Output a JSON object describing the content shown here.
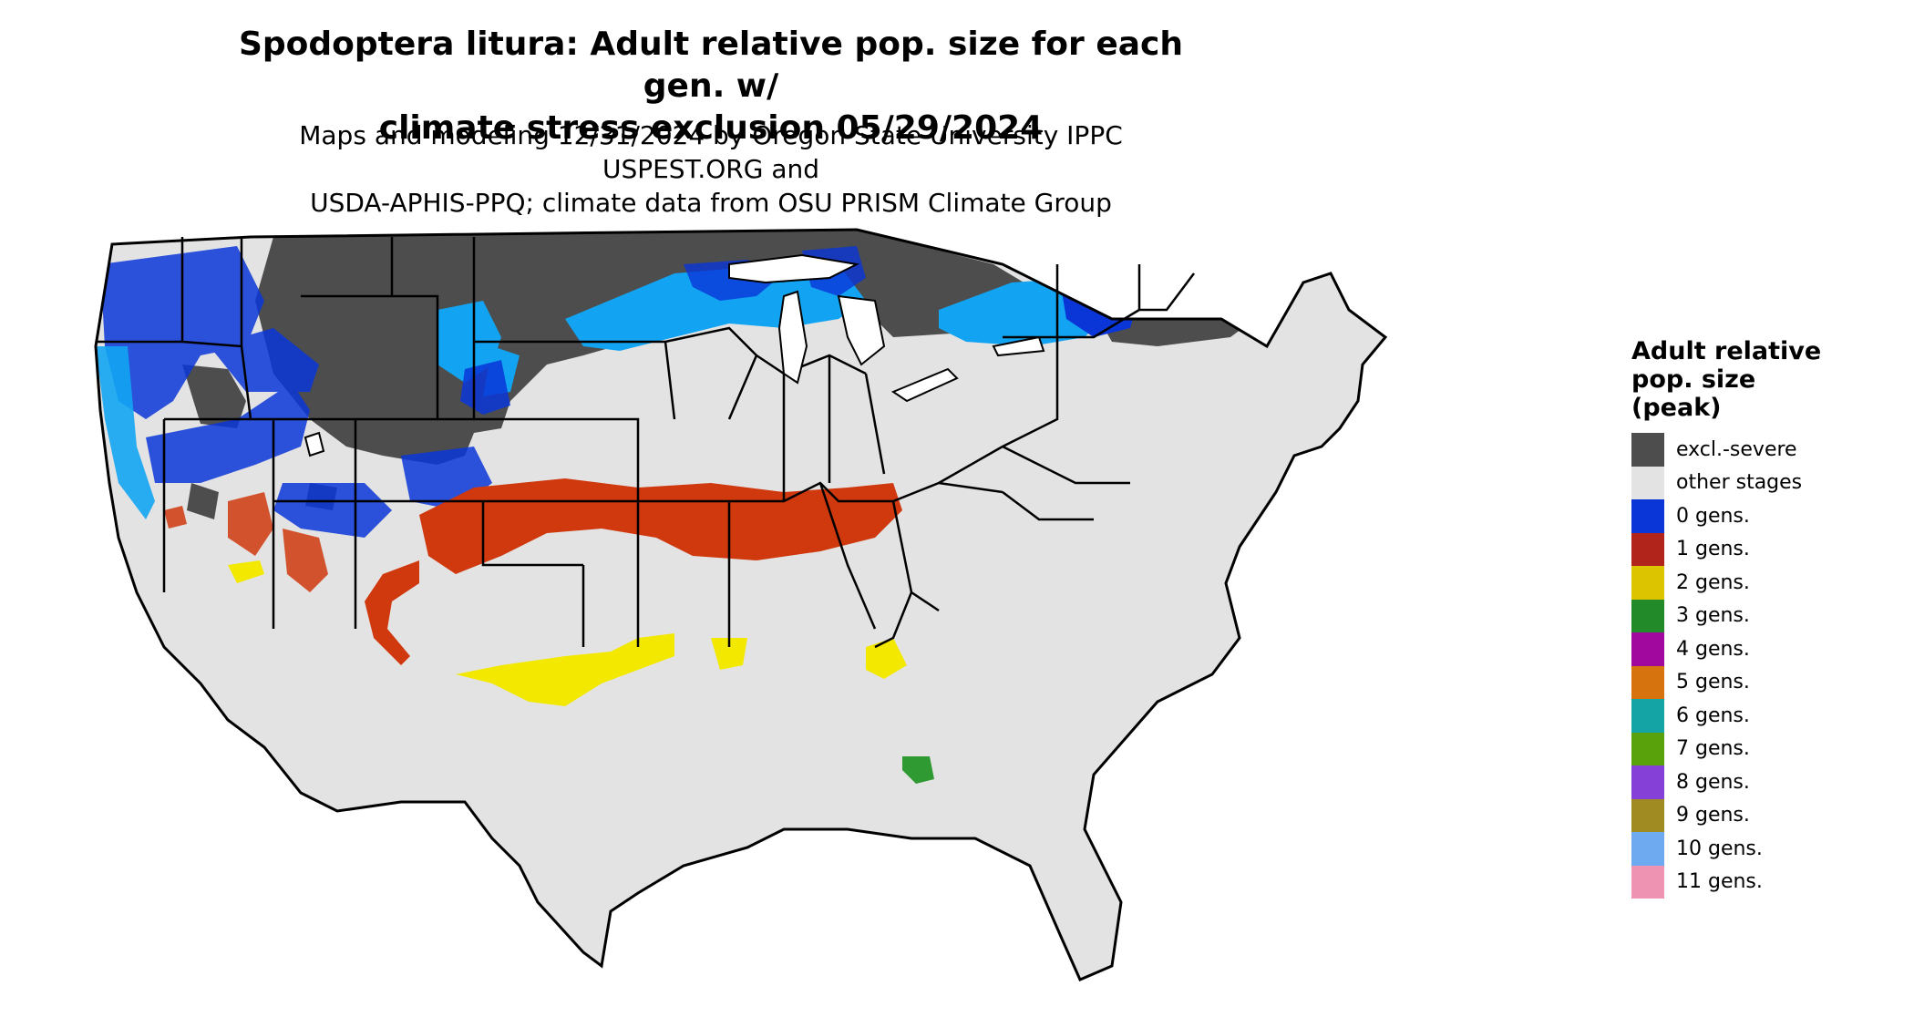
{
  "title": {
    "line1": "Spodoptera litura: Adult relative pop. size for each gen. w/",
    "line2": "climate stress exclusion 05/29/2024"
  },
  "subtitle": {
    "line1": "Maps and modeling 12/31/2024 by Oregon State University IPPC USPEST.ORG and",
    "line2": "USDA-APHIS-PPQ; climate data from OSU PRISM Climate Group"
  },
  "legend": {
    "title_lines": [
      "Adult relative",
      "pop. size",
      "(peak)"
    ],
    "items": [
      {
        "label": "excl.-severe",
        "color": "#4d4d4d"
      },
      {
        "label": "other stages",
        "color": "#e3e3e3"
      },
      {
        "label": "0 gens.",
        "color": "#0a36d8"
      },
      {
        "label": "1 gens.",
        "color": "#b0241c"
      },
      {
        "label": "2 gens.",
        "color": "#dcc400"
      },
      {
        "label": "3 gens.",
        "color": "#238a2a"
      },
      {
        "label": "4 gens.",
        "color": "#a0089e"
      },
      {
        "label": "5 gens.",
        "color": "#d6730f"
      },
      {
        "label": "6 gens.",
        "color": "#14a4a6"
      },
      {
        "label": "7 gens.",
        "color": "#5aa20c"
      },
      {
        "label": "8 gens.",
        "color": "#8540d8"
      },
      {
        "label": "9 gens.",
        "color": "#a08a22"
      },
      {
        "label": "10 gens.",
        "color": "#6eaaf0"
      },
      {
        "label": "11 gens.",
        "color": "#ee94b2"
      }
    ]
  },
  "map_colors": {
    "excluded": "#4d4d4d",
    "other": "#e3e3e3",
    "gen0_dark": "#0a36d8",
    "gen0_light": "#12a4f2",
    "gen1": "#d0380e",
    "gen2": "#f2e800",
    "gen3": "#2f9a32",
    "border": "#000000"
  }
}
